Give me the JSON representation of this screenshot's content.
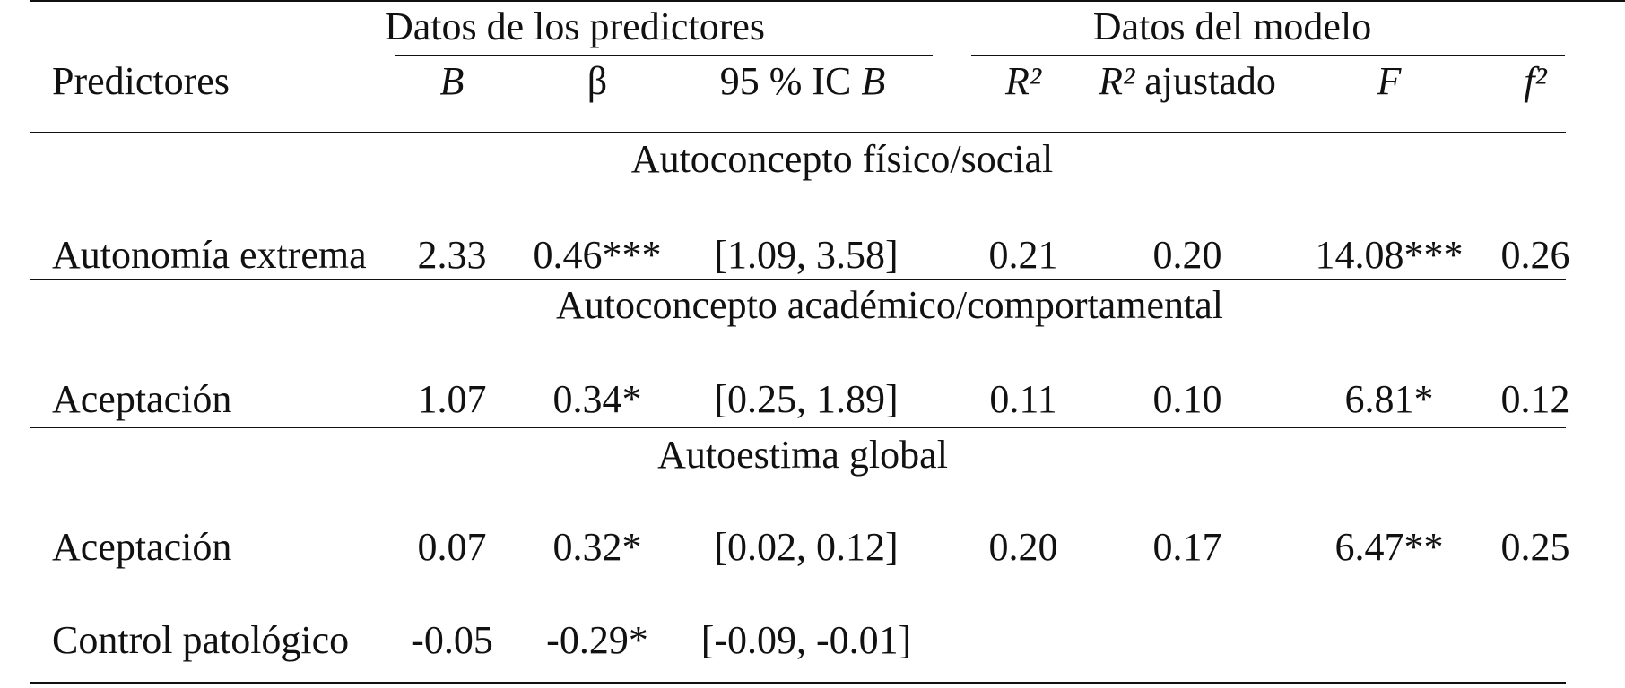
{
  "header": {
    "group_predictors": "Datos de los predictores",
    "group_model": "Datos del modelo",
    "col_predictors": "Predictores",
    "col_B": "B",
    "col_beta": "β",
    "col_ci_prefix": "95 % IC ",
    "col_ci_B": "B",
    "col_r2": "R²",
    "col_r2adj_r2": "R²",
    "col_r2adj_text": " ajustado",
    "col_F": "F",
    "col_f2": "f²"
  },
  "sections": [
    {
      "title": "Autoconcepto físico/social",
      "rows": [
        {
          "predictor": "Autonomía extrema",
          "B": "2.33",
          "beta": "0.46***",
          "ci": "[1.09, 3.58]",
          "r2": "0.21",
          "r2adj": "0.20",
          "F": "14.08***",
          "f2": "0.26"
        }
      ]
    },
    {
      "title": "Autoconcepto académico/comportamental",
      "rows": [
        {
          "predictor": "Aceptación",
          "B": "1.07",
          "beta": "0.34*",
          "ci": "[0.25, 1.89]",
          "r2": "0.11",
          "r2adj": "0.10",
          "F": "6.81*",
          "f2": "0.12"
        }
      ]
    },
    {
      "title": "Autoestima global",
      "rows": [
        {
          "predictor": "Aceptación",
          "B": "0.07",
          "beta": "0.32*",
          "ci": "[0.02, 0.12]",
          "r2": "0.20",
          "r2adj": "0.17",
          "F": "6.47**",
          "f2": "0.25"
        },
        {
          "predictor": "Control patológico",
          "B": "-0.05",
          "beta": "-0.29*",
          "ci": "[-0.09, -0.01]",
          "r2": "",
          "r2adj": "",
          "F": "",
          "f2": ""
        }
      ]
    }
  ]
}
